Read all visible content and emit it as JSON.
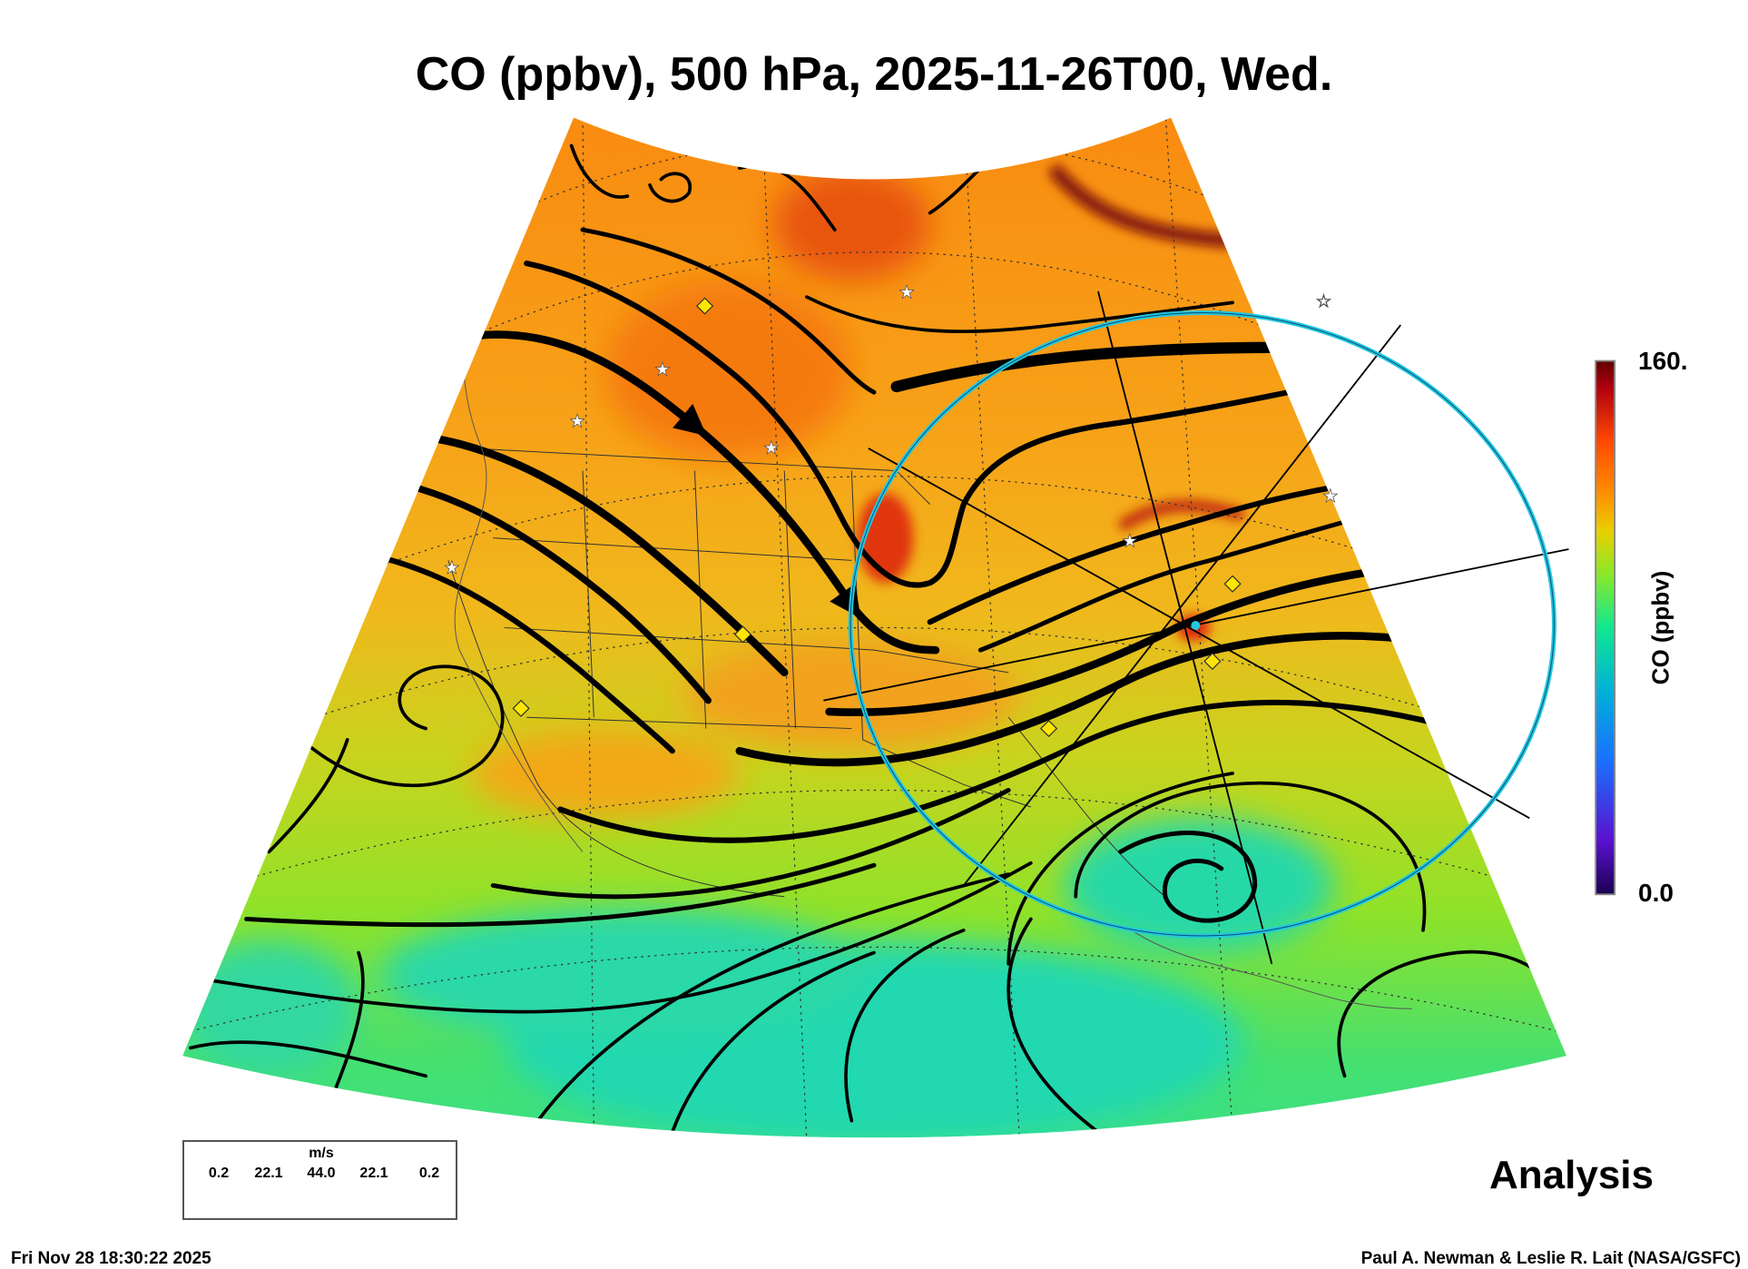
{
  "title": "CO (ppbv), 500 hPa, 2025-11-26T00, Wed.",
  "colorbar": {
    "max_label": "160.",
    "min_label": "0.0",
    "title": "CO (ppbv)",
    "range": [
      0,
      160
    ],
    "colors": [
      "#1a0050",
      "#5a10d0",
      "#1a70ff",
      "#00b0d8",
      "#10e890",
      "#8ae828",
      "#e8d000",
      "#ff9000",
      "#ff4800",
      "#b00010",
      "#600000"
    ]
  },
  "legend": {
    "unit": "m/s",
    "speeds": [
      "0.2",
      "22.1",
      "44.0",
      "22.1",
      "0.2"
    ]
  },
  "analysis_label": "Analysis",
  "footer": {
    "timestamp": "Fri Nov 28 18:30:22 2025",
    "credit": "Paul A. Newman & Leslie R. Lait (NASA/GSFC)"
  },
  "accent_colors": {
    "circle": "#22c8e0",
    "diamond": "#ffe600",
    "star": "#ffffff"
  }
}
